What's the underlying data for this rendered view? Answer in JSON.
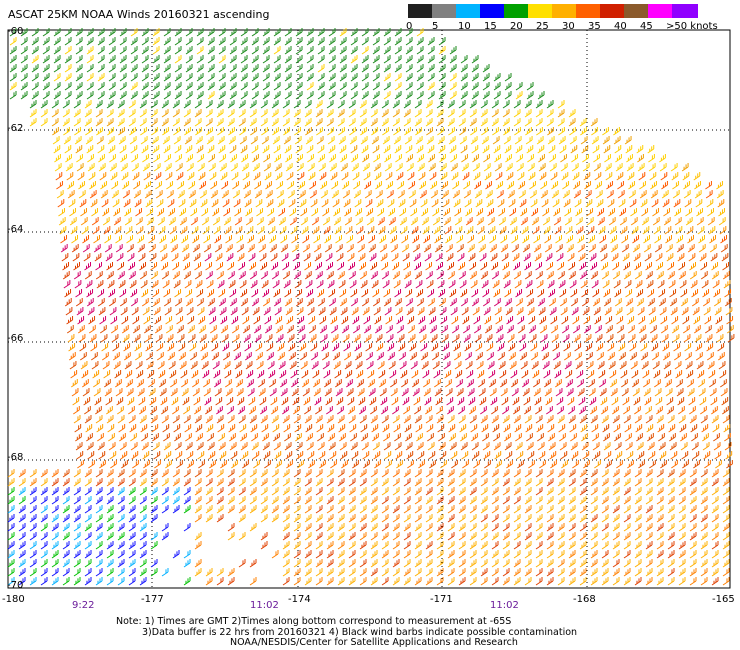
{
  "title": "ASCAT 25KM NOAA Winds 20160321 ascending",
  "legend": {
    "labels": [
      "0",
      "5",
      "10",
      "15",
      "20",
      "25",
      "30",
      "35",
      "40",
      "45",
      ">50 knots"
    ],
    "colors": [
      "#202020",
      "#808080",
      "#00b4ff",
      "#0000ff",
      "#00a000",
      "#ffe000",
      "#ffb000",
      "#ff6000",
      "#d02000",
      "#8b5a2b",
      "#ff00ff",
      "#9000ff"
    ]
  },
  "axes": {
    "lat_labels": [
      "-60",
      "-62",
      "-64",
      "-66",
      "-68",
      "-70"
    ],
    "lon_labels": [
      "-180",
      "-177",
      "-174",
      "-171",
      "-168",
      "-165"
    ],
    "times": [
      "9:22",
      "11:02",
      "11:02"
    ]
  },
  "notes": [
    "Note: 1) Times are GMT 2)Times along bottom correspond to measurement at -65S",
    "3)Data buffer is 22 hrs from 20160321 4) Black wind barbs indicate possible contamination",
    "NOAA/NESDIS/Center for Satellite Applications and Research"
  ]
}
